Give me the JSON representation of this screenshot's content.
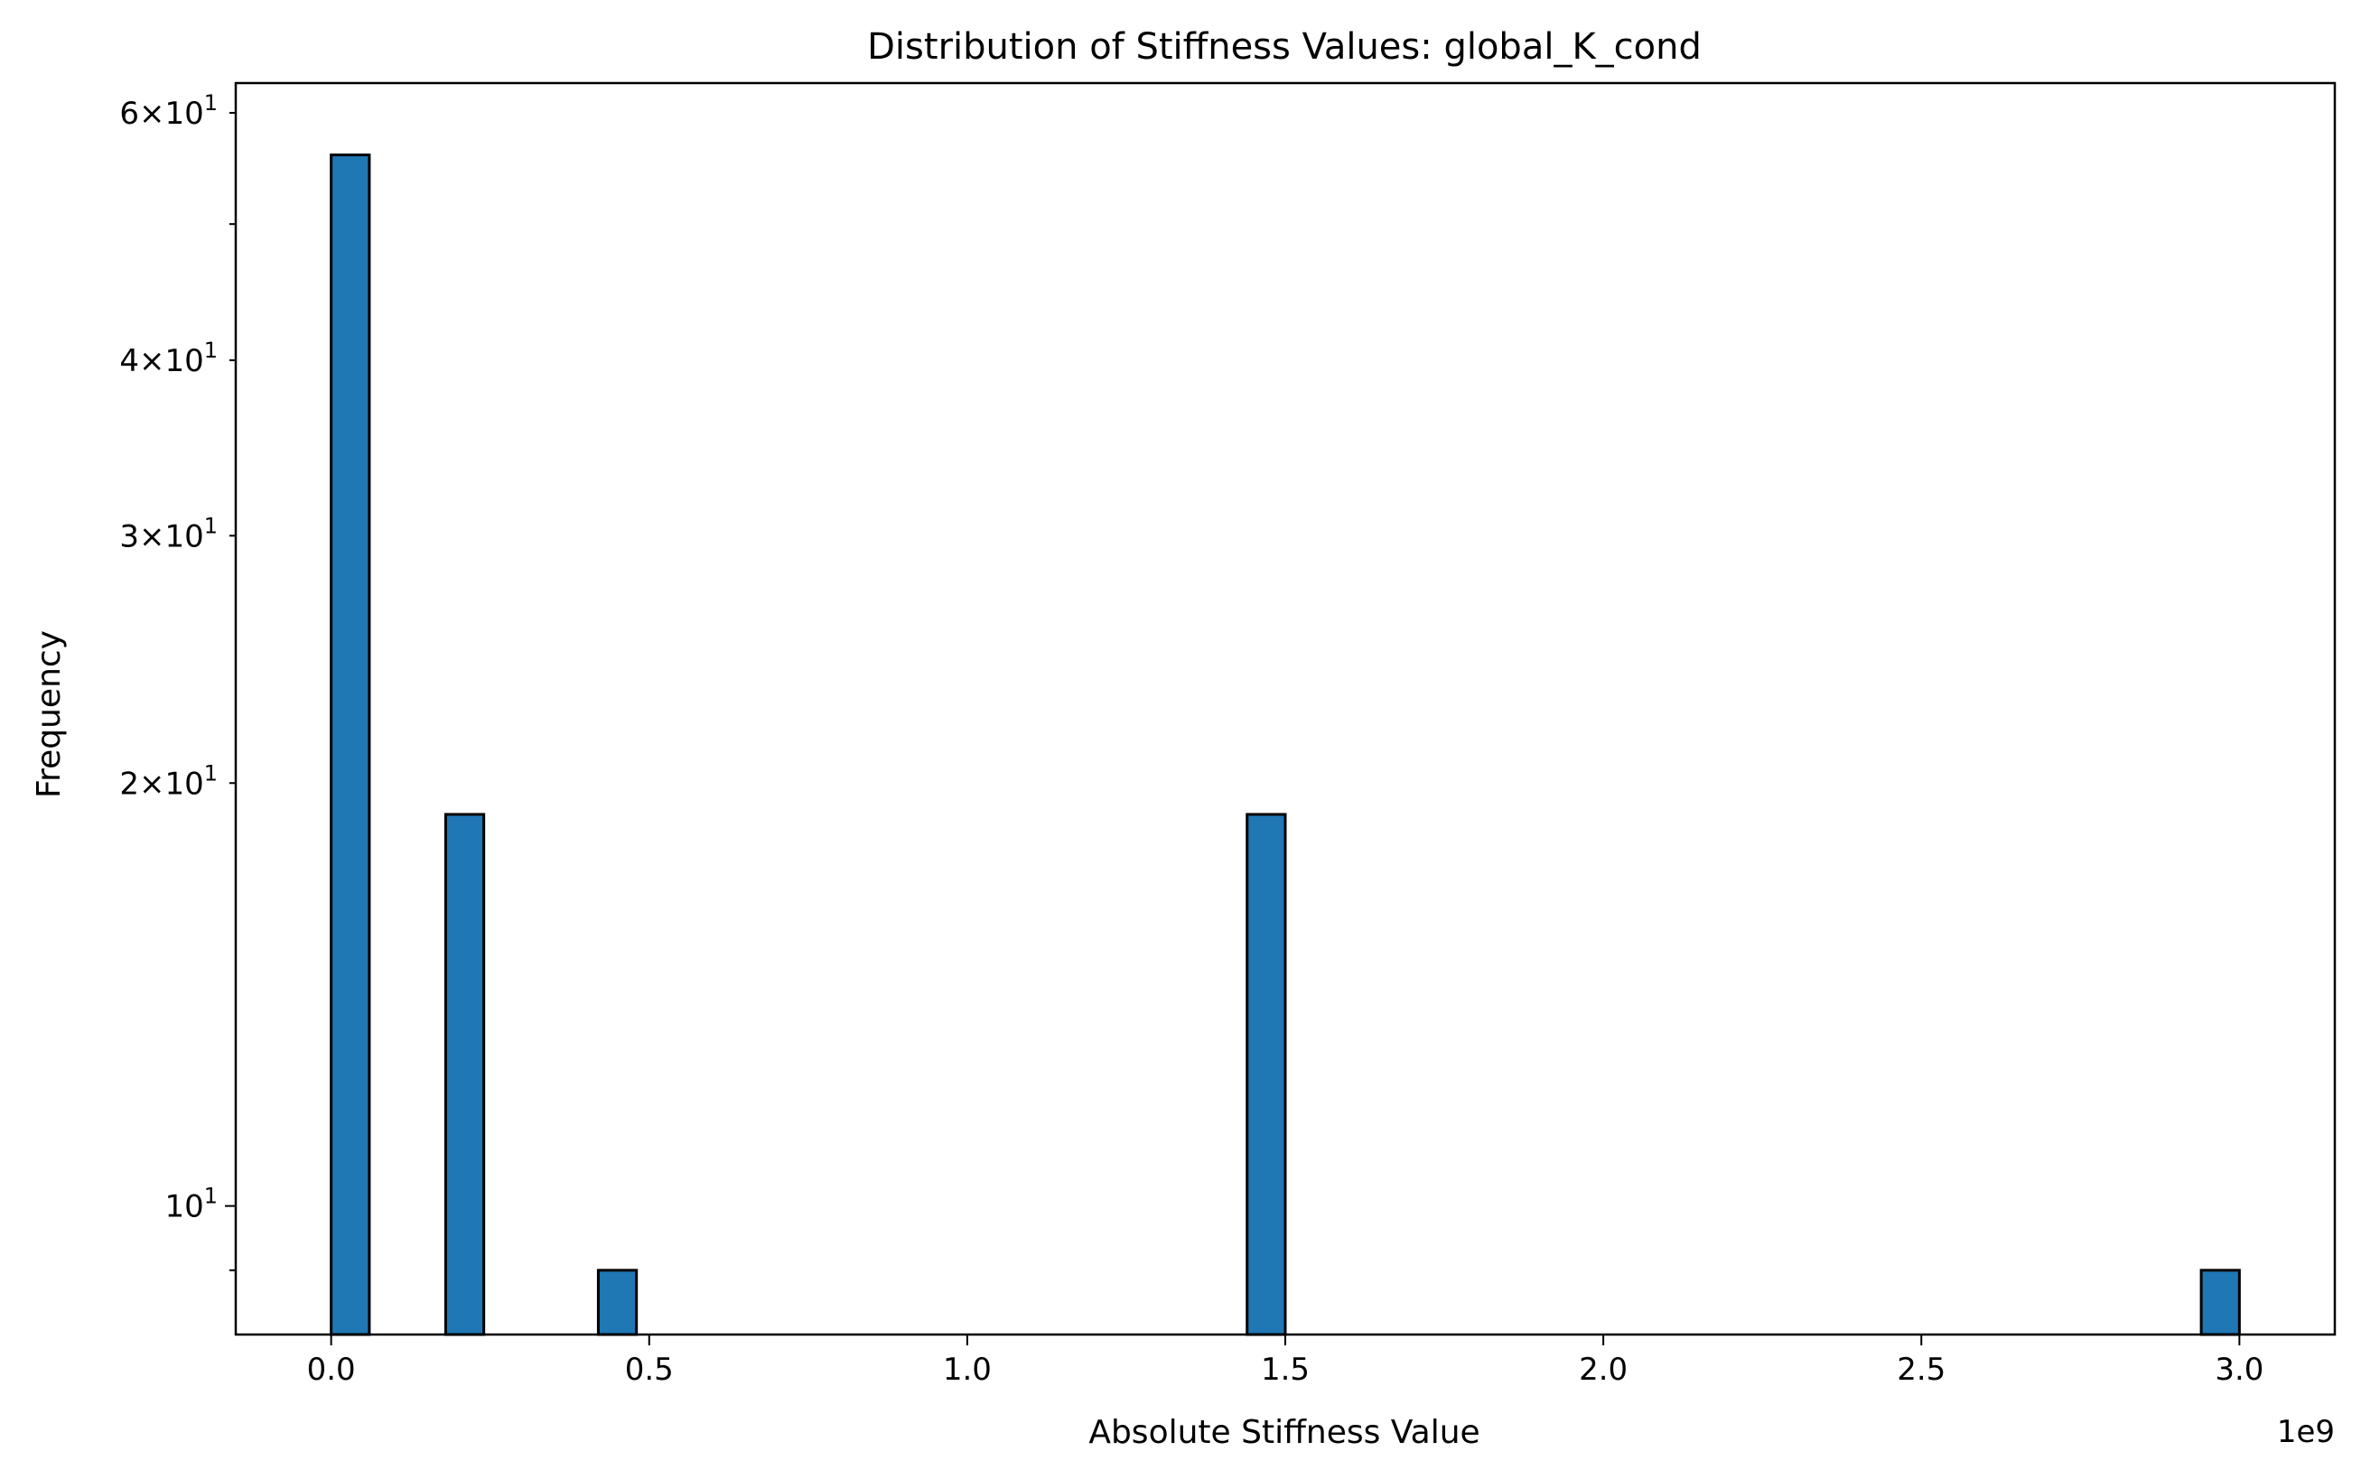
{
  "chart_data": {
    "type": "bar",
    "title": "Distribution of Stiffness Values: global_K_cond",
    "xlabel": "Absolute Stiffness Value",
    "ylabel": "Frequency",
    "x_offset_label": "1e9",
    "x_scale_exponent": 9,
    "yscale": "log",
    "xlim": [
      -0.15,
      3.15
    ],
    "ylim": [
      8.1,
      63
    ],
    "grid": false,
    "bar_color": "#1f77b4",
    "edge_color": "#000000",
    "bin_width": 0.06,
    "bars": [
      {
        "x0": 0.0,
        "x1": 0.06,
        "value": 56
      },
      {
        "x0": 0.18,
        "x1": 0.24,
        "value": 19
      },
      {
        "x0": 0.42,
        "x1": 0.48,
        "value": 9
      },
      {
        "x0": 1.44,
        "x1": 1.5,
        "value": 19
      },
      {
        "x0": 2.94,
        "x1": 3.0,
        "value": 9
      }
    ],
    "x_ticks": [
      {
        "value": 0.0,
        "label": "0.0"
      },
      {
        "value": 0.5,
        "label": "0.5"
      },
      {
        "value": 1.0,
        "label": "1.0"
      },
      {
        "value": 1.5,
        "label": "1.5"
      },
      {
        "value": 2.0,
        "label": "2.0"
      },
      {
        "value": 2.5,
        "label": "2.5"
      },
      {
        "value": 3.0,
        "label": "3.0"
      }
    ],
    "y_major_ticks": [
      {
        "value": 10,
        "mantissa": "",
        "exponent": "1"
      }
    ],
    "y_minor_ticks": [
      {
        "value": 9,
        "mantissa": "",
        "exponent": ""
      },
      {
        "value": 20,
        "mantissa": "2",
        "exponent": "1"
      },
      {
        "value": 30,
        "mantissa": "3",
        "exponent": "1"
      },
      {
        "value": 40,
        "mantissa": "4",
        "exponent": "1"
      },
      {
        "value": 50,
        "mantissa": "",
        "exponent": ""
      },
      {
        "value": 60,
        "mantissa": "6",
        "exponent": "1"
      }
    ]
  }
}
